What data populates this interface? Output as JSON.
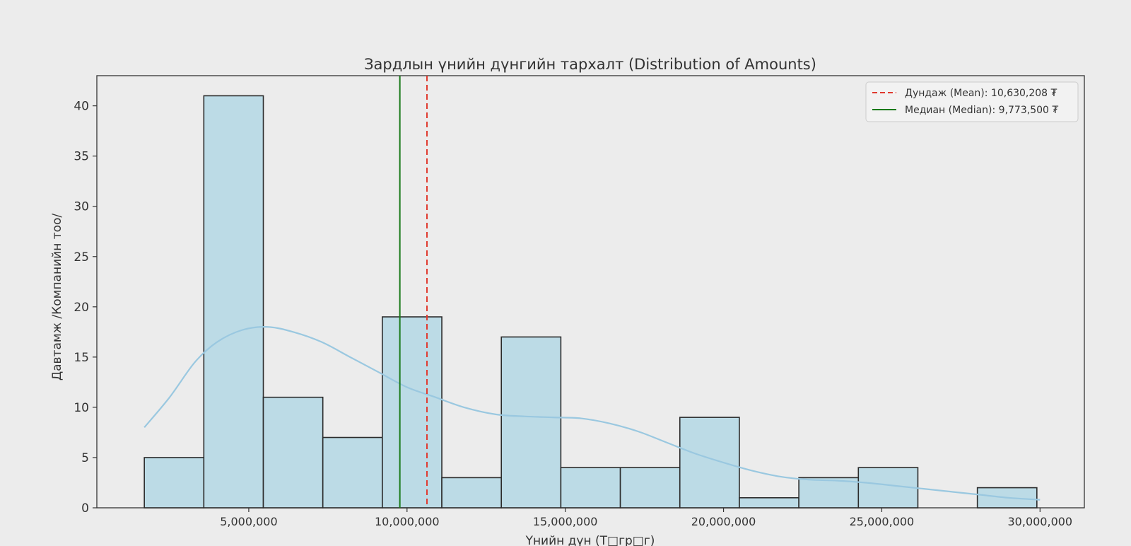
{
  "chart_data": {
    "type": "bar",
    "title": "Зардлын үнийн дүнгийн тархалт (Distribution of Amounts)",
    "xlabel": "Үнийн дүн (Т□гр□г)",
    "ylabel": "Давтамж /Компанийн тоо/",
    "xlim": [
      200000,
      31400000
    ],
    "ylim": [
      0,
      43
    ],
    "xticks": [
      5000000,
      10000000,
      15000000,
      20000000,
      25000000,
      30000000
    ],
    "xtick_labels": [
      "5,000,000",
      "10,000,000",
      "15,000,000",
      "20,000,000",
      "25,000,000",
      "30,000,000"
    ],
    "yticks": [
      0,
      5,
      10,
      15,
      20,
      25,
      30,
      35,
      40
    ],
    "bin_start": 1700000,
    "bin_width": 1880000,
    "counts": [
      5,
      41,
      11,
      7,
      19,
      3,
      17,
      4,
      4,
      9,
      1,
      3,
      4,
      0,
      2
    ],
    "kde": {
      "x": [
        1700000,
        2500000,
        3300000,
        4000000,
        4800000,
        5600000,
        6400000,
        7300000,
        8200000,
        9100000,
        10000000,
        10900000,
        11800000,
        12800000,
        13700000,
        14600000,
        15500000,
        16400000,
        17300000,
        18200000,
        19100000,
        20000000,
        20900000,
        21800000,
        22700000,
        23600000,
        24500000,
        25400000,
        26300000,
        27200000,
        28100000,
        29000000,
        30000000
      ],
      "y": [
        8,
        11,
        14.5,
        16.5,
        17.7,
        18,
        17.5,
        16.5,
        15,
        13.5,
        12,
        11,
        10,
        9.3,
        9.1,
        9,
        8.9,
        8.4,
        7.6,
        6.5,
        5.4,
        4.5,
        3.7,
        3.1,
        2.8,
        2.7,
        2.5,
        2.2,
        1.9,
        1.6,
        1.3,
        1.0,
        0.8
      ]
    },
    "lines": [
      {
        "name": "Дундаж (Mean): 10,630,208 ₮",
        "x": 10630208,
        "color": "#e03a2f",
        "style": "dashed"
      },
      {
        "name": "Медиан (Median): 9,773,500 ₮",
        "x": 9773500,
        "color": "#1a7a1a",
        "style": "solid"
      }
    ],
    "bar_color": "#bcdbe6",
    "bar_edge": "#2b2b2b",
    "kde_color": "#9ac8e0",
    "grid": false,
    "legend_position": "top-right"
  }
}
